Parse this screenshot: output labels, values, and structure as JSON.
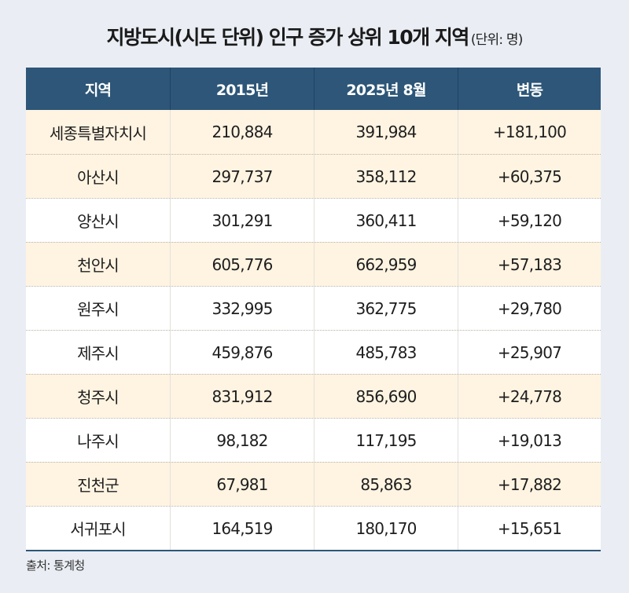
{
  "title": {
    "main": "지방도시(시도 단위) 인구 증가 상위 10개 지역",
    "unit": "(단위: 명)"
  },
  "table": {
    "headers": [
      "지역",
      "2015년",
      "2025년 8월",
      "변동"
    ],
    "rows": [
      {
        "region": "세종특별자치시",
        "y2015": "210,884",
        "y2025": "391,984",
        "change": "+181,100",
        "bg": "cream"
      },
      {
        "region": "아산시",
        "y2015": "297,737",
        "y2025": "358,112",
        "change": "+60,375",
        "bg": "cream"
      },
      {
        "region": "양산시",
        "y2015": "301,291",
        "y2025": "360,411",
        "change": "+59,120",
        "bg": "white"
      },
      {
        "region": "천안시",
        "y2015": "605,776",
        "y2025": "662,959",
        "change": "+57,183",
        "bg": "cream"
      },
      {
        "region": "원주시",
        "y2015": "332,995",
        "y2025": "362,775",
        "change": "+29,780",
        "bg": "white"
      },
      {
        "region": "제주시",
        "y2015": "459,876",
        "y2025": "485,783",
        "change": "+25,907",
        "bg": "white"
      },
      {
        "region": "청주시",
        "y2015": "831,912",
        "y2025": "856,690",
        "change": "+24,778",
        "bg": "cream"
      },
      {
        "region": "나주시",
        "y2015": "98,182",
        "y2025": "117,195",
        "change": "+19,013",
        "bg": "white"
      },
      {
        "region": "진천군",
        "y2015": "67,981",
        "y2025": "85,863",
        "change": "+17,882",
        "bg": "cream"
      },
      {
        "region": "서귀포시",
        "y2015": "164,519",
        "y2025": "180,170",
        "change": "+15,651",
        "bg": "white"
      }
    ]
  },
  "source": "출처: 통계청",
  "colors": {
    "header_bg": "#2d5678",
    "cream_row": "#fff4e2",
    "white_row": "#ffffff",
    "page_bg": "#eaeef4"
  }
}
